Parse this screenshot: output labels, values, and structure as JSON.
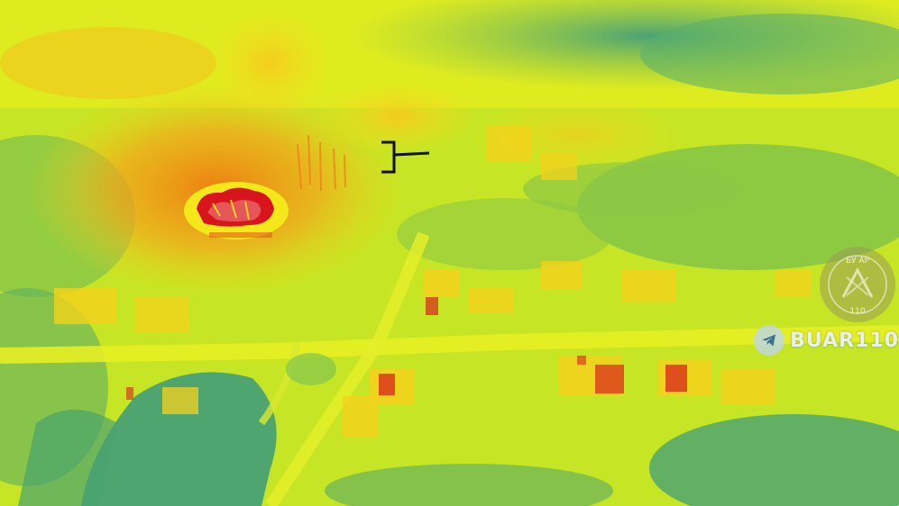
{
  "scene": {
    "palette": {
      "hot": "#d81a1a",
      "warm": "#f0a21c",
      "mid": "#f2ee1a",
      "cool": "#b8de2a",
      "cold": "#3e9c7a"
    },
    "reticle_icon": "bracket-crosshair-icon"
  },
  "watermark": {
    "icon": "telegram-icon",
    "label": "BUAR110"
  },
  "emblem": {
    "icon": "unit-emblem-icon",
    "top_text": "БУ АР",
    "bottom_text": "110"
  }
}
